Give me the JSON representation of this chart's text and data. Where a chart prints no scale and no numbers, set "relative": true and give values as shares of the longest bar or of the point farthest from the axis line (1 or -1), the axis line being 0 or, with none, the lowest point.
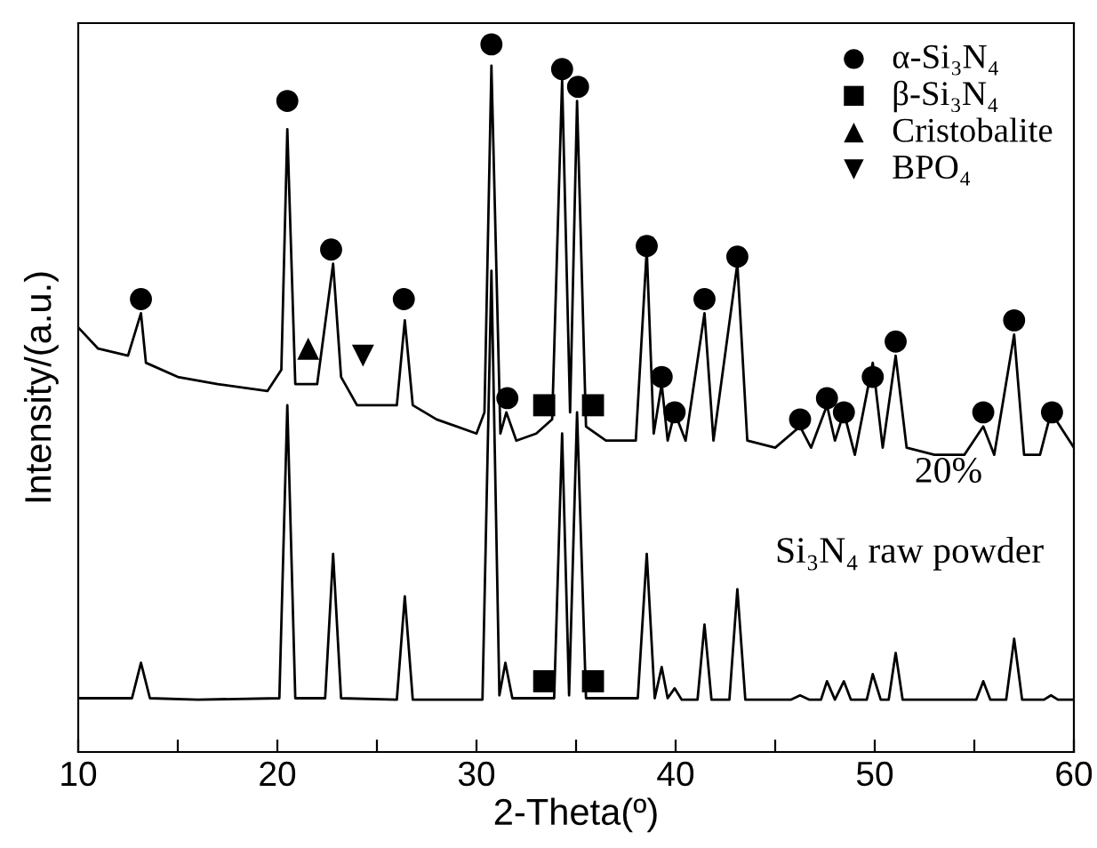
{
  "chart_data": {
    "type": "line",
    "relative": true,
    "xlabel": "2-Theta(º)",
    "ylabel": "Intensity/(a.u.)",
    "xlim": [
      10,
      60
    ],
    "xticks": [
      10,
      {
        "value": 15,
        "label": null
      },
      20,
      {
        "value": 25,
        "label": null
      },
      30,
      {
        "value": 35,
        "label": null
      },
      40,
      {
        "value": 45,
        "label": null
      },
      50,
      {
        "value": 55,
        "label": null
      },
      60
    ],
    "tick_labels": "x",
    "grid": false,
    "legend": "top right",
    "series": [
      {
        "name": "20%",
        "color": "#000000",
        "x": [
          10,
          11,
          12.5,
          13.15,
          13.4,
          15,
          17,
          19.5,
          20.2,
          20.5,
          20.9,
          22,
          22.8,
          23.2,
          24,
          25,
          26,
          26.4,
          26.8,
          28,
          30,
          30.4,
          30.75,
          31.2,
          31.5,
          32,
          33,
          33.8,
          34.3,
          34.7,
          35.05,
          35.5,
          36.5,
          38,
          38.55,
          38.9,
          39.3,
          39.6,
          39.95,
          40.5,
          41.45,
          41.9,
          43.1,
          43.6,
          45,
          46.25,
          46.8,
          47.6,
          48.0,
          48.45,
          49.0,
          49.9,
          50.4,
          51.05,
          51.6,
          53,
          54.5,
          55.45,
          56,
          57.0,
          57.5,
          58.3,
          58.85,
          60
        ],
        "values": [
          0.6,
          0.57,
          0.56,
          0.62,
          0.55,
          0.53,
          0.52,
          0.51,
          0.54,
          0.88,
          0.52,
          0.52,
          0.69,
          0.53,
          0.49,
          0.49,
          0.49,
          0.61,
          0.49,
          0.47,
          0.45,
          0.48,
          0.97,
          0.45,
          0.48,
          0.44,
          0.45,
          0.47,
          0.95,
          0.48,
          0.92,
          0.46,
          0.44,
          0.44,
          0.71,
          0.45,
          0.52,
          0.44,
          0.48,
          0.44,
          0.62,
          0.44,
          0.69,
          0.44,
          0.43,
          0.46,
          0.43,
          0.49,
          0.44,
          0.48,
          0.42,
          0.55,
          0.43,
          0.56,
          0.43,
          0.42,
          0.42,
          0.46,
          0.42,
          0.59,
          0.42,
          0.42,
          0.48,
          0.43
        ]
      },
      {
        "name": "Si₃N₄ raw powder",
        "color": "#000000",
        "x": [
          10,
          12.7,
          13.15,
          13.6,
          16,
          20.1,
          20.5,
          20.9,
          22.4,
          22.8,
          23.2,
          26.0,
          26.4,
          26.8,
          30.3,
          30.75,
          31.15,
          31.45,
          31.8,
          33.9,
          34.3,
          34.65,
          35.05,
          35.5,
          38.1,
          38.55,
          38.95,
          39.3,
          39.6,
          39.95,
          40.3,
          41.1,
          41.45,
          41.8,
          42.7,
          43.1,
          43.5,
          45.8,
          46.25,
          46.7,
          47.3,
          47.6,
          48.0,
          48.45,
          48.8,
          49.6,
          49.9,
          50.3,
          50.7,
          51.05,
          51.4,
          55.1,
          55.45,
          55.8,
          56.6,
          57.0,
          57.4,
          58.5,
          58.85,
          59.2,
          60
        ],
        "values": [
          0.076,
          0.076,
          0.126,
          0.076,
          0.074,
          0.076,
          0.49,
          0.076,
          0.076,
          0.28,
          0.076,
          0.074,
          0.22,
          0.074,
          0.074,
          0.68,
          0.08,
          0.126,
          0.076,
          0.076,
          0.45,
          0.08,
          0.48,
          0.076,
          0.076,
          0.28,
          0.076,
          0.12,
          0.076,
          0.09,
          0.074,
          0.074,
          0.18,
          0.074,
          0.074,
          0.23,
          0.074,
          0.074,
          0.08,
          0.074,
          0.074,
          0.1,
          0.074,
          0.1,
          0.074,
          0.074,
          0.11,
          0.074,
          0.074,
          0.14,
          0.074,
          0.074,
          0.1,
          0.074,
          0.074,
          0.16,
          0.074,
          0.074,
          0.08,
          0.074,
          0.074
        ]
      },
      {
        "name": "α-Si₃N₄",
        "type": "scatter",
        "marker": "circle",
        "color": "#000000",
        "x": [
          13.15,
          20.5,
          22.7,
          26.35,
          30.75,
          31.55,
          34.3,
          35.1,
          38.55,
          39.3,
          39.95,
          41.45,
          43.1,
          46.25,
          47.6,
          48.45,
          49.9,
          51.05,
          55.45,
          57.0,
          58.9
        ],
        "values": [
          0.64,
          0.92,
          0.71,
          0.64,
          1.0,
          0.5,
          0.965,
          0.94,
          0.715,
          0.53,
          0.48,
          0.64,
          0.7,
          0.47,
          0.5,
          0.48,
          0.53,
          0.58,
          0.48,
          0.61,
          0.48
        ]
      },
      {
        "name": "β-Si₃N₄",
        "type": "scatter",
        "marker": "square",
        "color": "#000000",
        "x": [
          33.4,
          35.85,
          33.4,
          35.85
        ],
        "values": [
          0.49,
          0.49,
          0.1,
          0.1
        ]
      },
      {
        "name": "Cristobalite",
        "type": "scatter",
        "marker": "triangle",
        "color": "#000000",
        "x": [
          21.55
        ],
        "values": [
          0.57
        ]
      },
      {
        "name": "BPO₄",
        "type": "scatter",
        "marker": "triangle_down",
        "color": "#000000",
        "x": [
          24.3
        ],
        "values": [
          0.56
        ]
      }
    ]
  }
}
